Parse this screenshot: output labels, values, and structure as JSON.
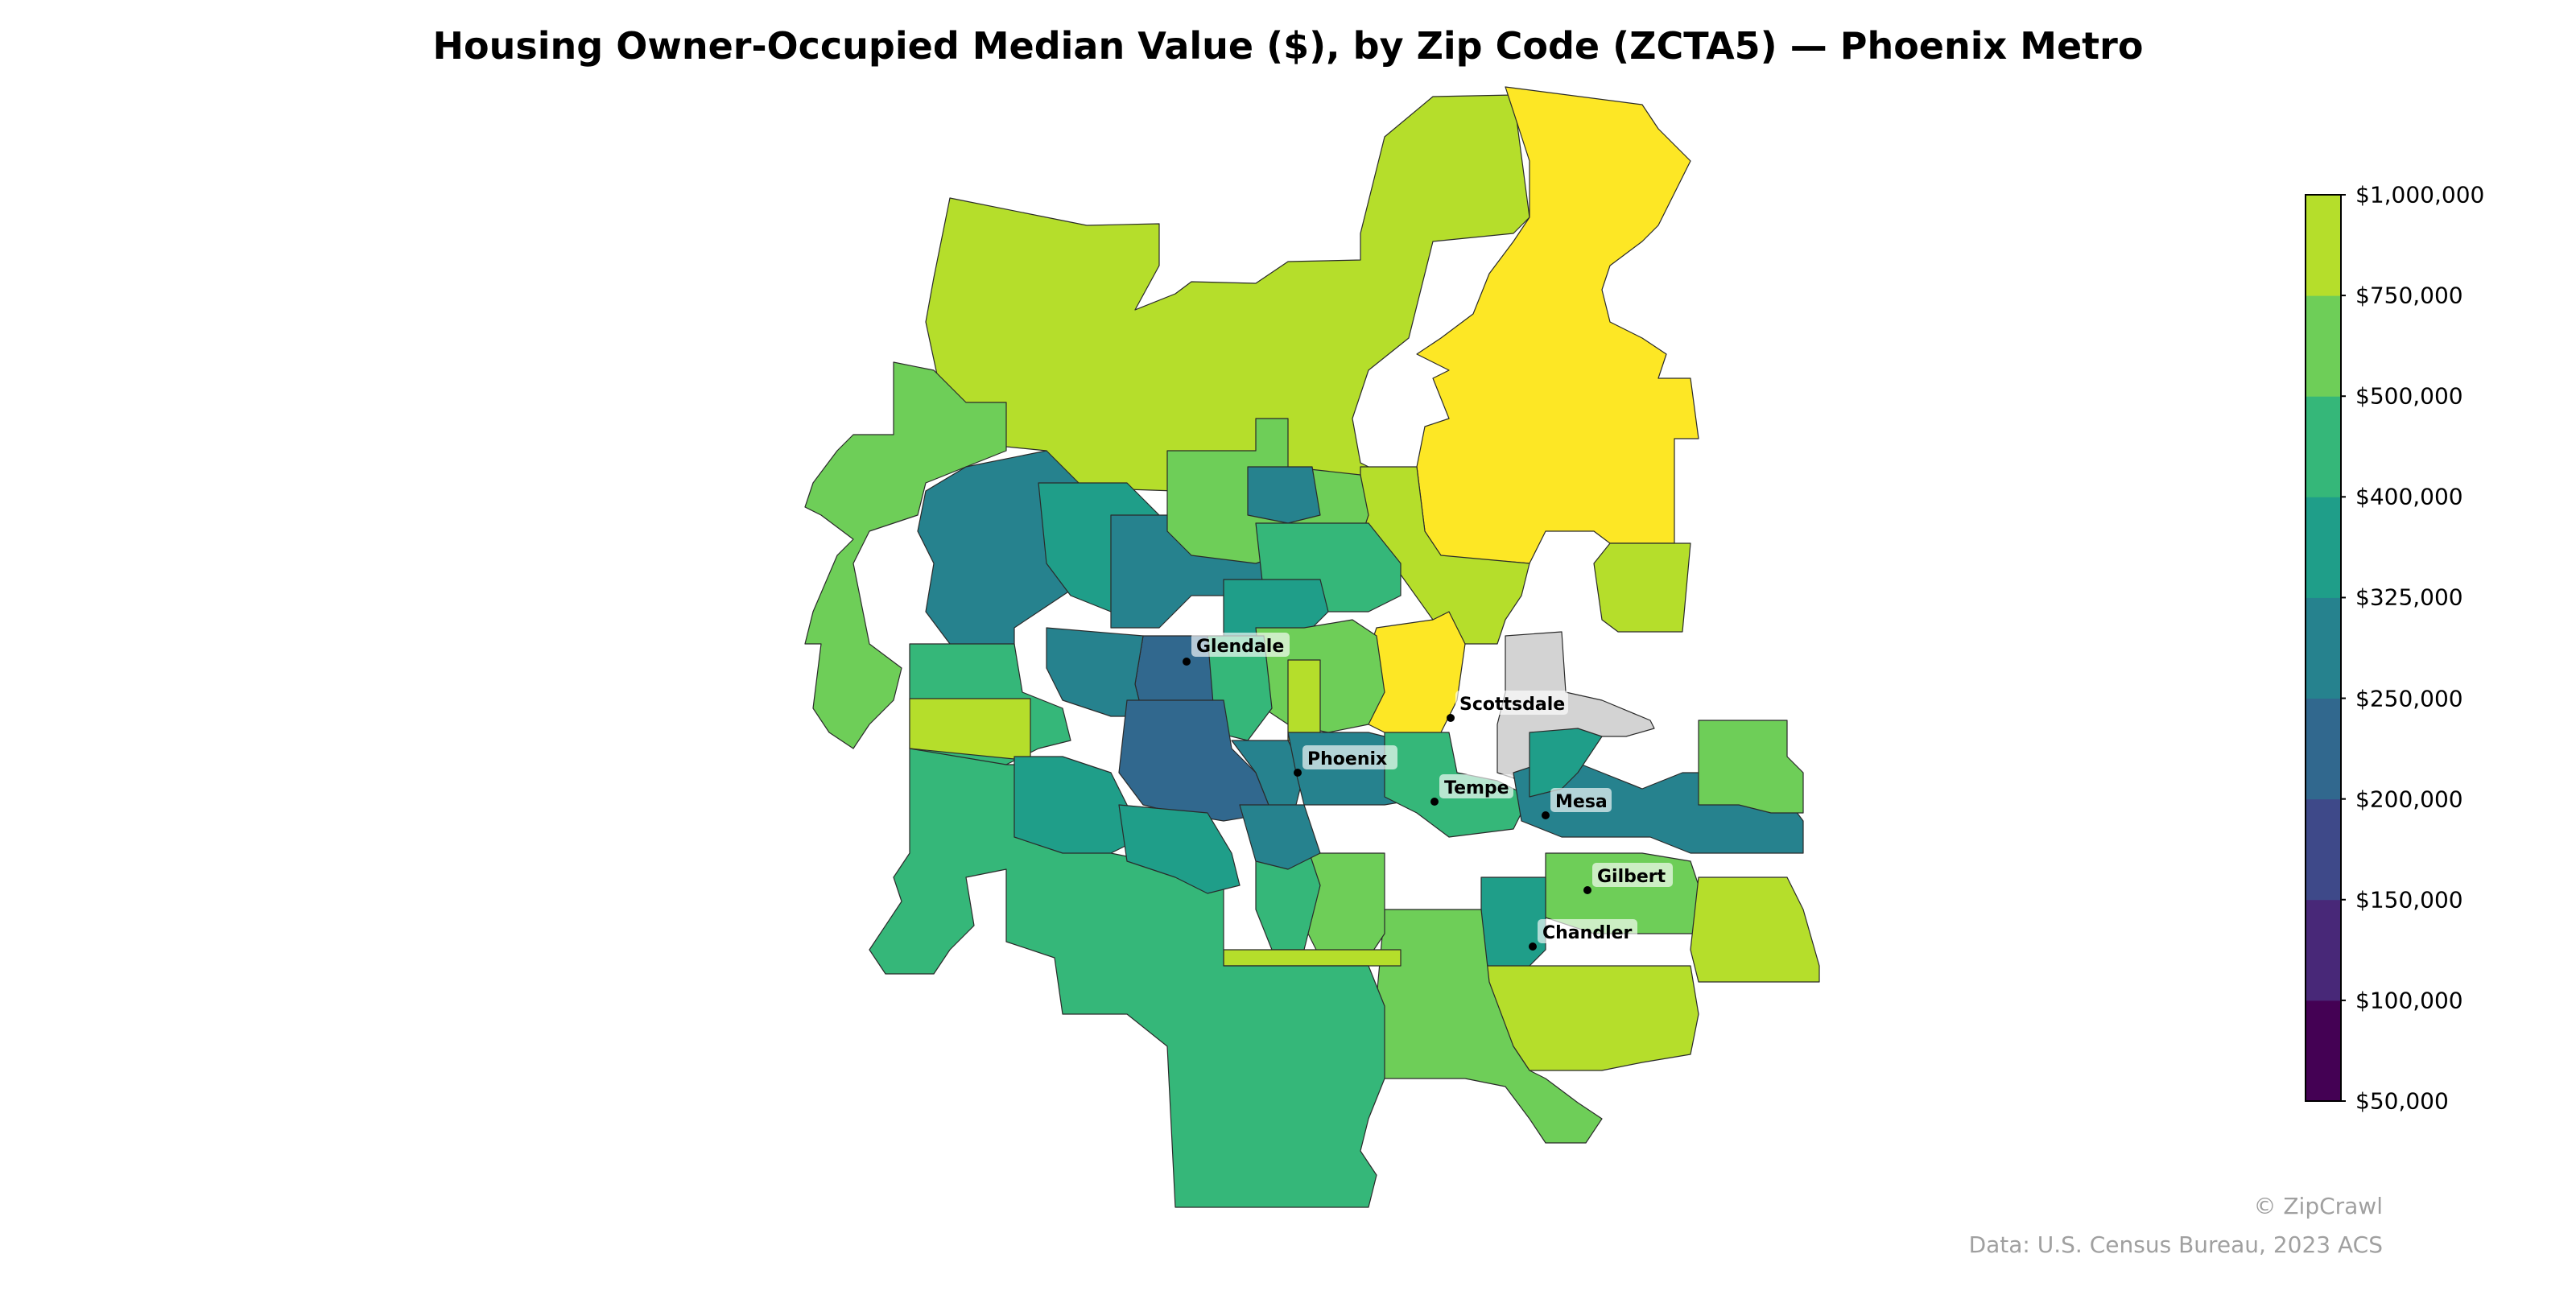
{
  "title": "Housing Owner-Occupied Median Value ($), by Zip Code (ZCTA5) — Phoenix Metro",
  "legend": {
    "ticks": [
      "$50,000",
      "$100,000",
      "$150,000",
      "$200,000",
      "$250,000",
      "$325,000",
      "$400,000",
      "$500,000",
      "$750,000",
      "$1,000,000"
    ],
    "colors": [
      "#440154",
      "#482878",
      "#3e4989",
      "#31688e",
      "#26828e",
      "#1f9e89",
      "#35b779",
      "#6ece58",
      "#b5de2b",
      "#fde725"
    ]
  },
  "no_data_color": "#d3d3d3",
  "cities": [
    {
      "name": "Glendale"
    },
    {
      "name": "Scottsdale"
    },
    {
      "name": "Phoenix"
    },
    {
      "name": "Tempe"
    },
    {
      "name": "Mesa"
    },
    {
      "name": "Gilbert"
    },
    {
      "name": "Chandler"
    }
  ],
  "credits": {
    "brand": "© ZipCrawl",
    "source": "Data: U.S. Census Bureau, 2023 ACS"
  }
}
